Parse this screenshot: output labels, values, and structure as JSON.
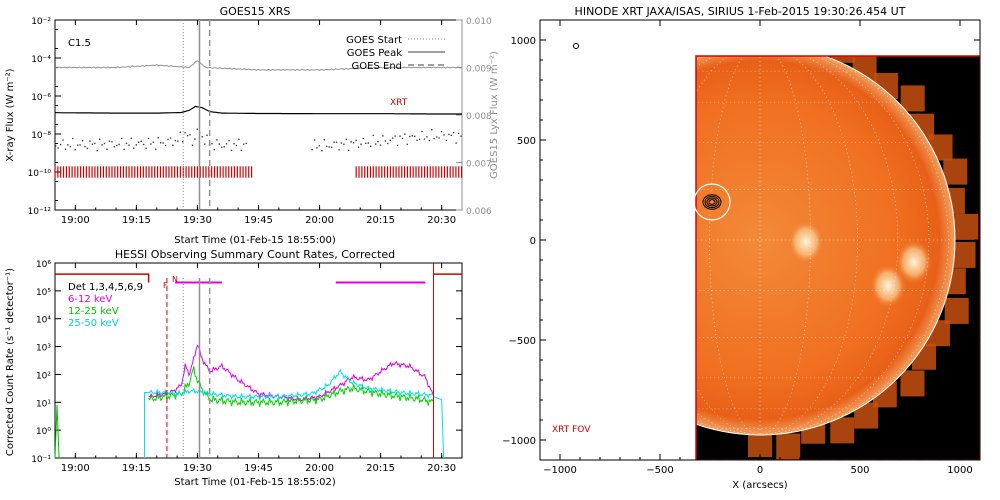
{
  "colors": {
    "goes_long": "#000000",
    "goes_short": "#404040",
    "lya": "#909090",
    "xrt_marks": "#d00000",
    "det_total": "#000000",
    "band_6_12": "#e000e0",
    "band_12_25": "#00d000",
    "band_25_50": "#00e0e0",
    "attenuator": "#d00000",
    "event_lines": "#909090",
    "sun_orange": "#f07020",
    "fov_border": "#e00000",
    "limb": "#ffffff"
  },
  "chart_data": [
    {
      "id": "goes",
      "type": "line",
      "title": "GOES15 XRS",
      "class_label": "C1.5",
      "xlabel": "Start Time (01-Feb-15 18:55:00)",
      "ylabel": "X-ray Flux (W m⁻²)",
      "y2label": "GOES15 Lyx Flux (W m⁻²)",
      "xlim": [
        -5,
        95
      ],
      "x_unit": "minutes after 19:00",
      "ylim_log10": [
        -12,
        -2
      ],
      "y2lim": [
        0.006,
        0.01
      ],
      "xticks": [
        {
          "v": 0,
          "label": "19:00"
        },
        {
          "v": 15,
          "label": "19:15"
        },
        {
          "v": 30,
          "label": "19:30"
        },
        {
          "v": 45,
          "label": "19:45"
        },
        {
          "v": 60,
          "label": "20:00"
        },
        {
          "v": 75,
          "label": "20:15"
        },
        {
          "v": 90,
          "label": "20:30"
        }
      ],
      "yticks": [
        {
          "e": -12,
          "label": "10⁻¹²"
        },
        {
          "e": -10,
          "label": "10⁻¹⁰"
        },
        {
          "e": -8,
          "label": "10⁻⁸"
        },
        {
          "e": -6,
          "label": "10⁻⁶"
        },
        {
          "e": -4,
          "label": "10⁻⁴"
        },
        {
          "e": -2,
          "label": "10⁻²"
        }
      ],
      "y2ticks": [
        "0.006",
        "0.007",
        "0.008",
        "0.009",
        "0.010"
      ],
      "legend": [
        {
          "label": "GOES Start",
          "style": "dotted"
        },
        {
          "label": "GOES Peak",
          "style": "solid"
        },
        {
          "label": "GOES End",
          "style": "dashed"
        }
      ],
      "xrt_label": "XRT",
      "event_times": {
        "start": 26.5,
        "peak": 30.5,
        "end": 33.0
      },
      "series": [
        {
          "name": "long",
          "x": [
            -5,
            10,
            20,
            26,
            28,
            29.5,
            31,
            33,
            36,
            45,
            60,
            75,
            90,
            95
          ],
          "log_flux": [
            -6.88,
            -6.9,
            -6.9,
            -6.87,
            -6.75,
            -6.55,
            -6.6,
            -6.82,
            -6.9,
            -6.92,
            -6.93,
            -6.93,
            -6.95,
            -6.95
          ]
        },
        {
          "name": "short",
          "x": [
            -5,
            10,
            20,
            25,
            27,
            28.5,
            30,
            31,
            33,
            36,
            45,
            60,
            75,
            80,
            90,
            95
          ],
          "log_flux": [
            -8.55,
            -8.5,
            -8.45,
            -8.3,
            -7.9,
            -8.4,
            -7.8,
            -8.1,
            -8.5,
            -8.55,
            -8.5,
            -8.6,
            -8.35,
            -8.2,
            -8.05,
            -8.1
          ]
        },
        {
          "name": "lya",
          "x": [
            -5,
            10,
            20,
            28,
            30,
            32,
            45,
            60,
            75,
            90,
            95
          ],
          "flux": [
            0.009,
            0.009,
            0.00905,
            0.009,
            0.00915,
            0.009,
            0.00895,
            0.00895,
            0.009,
            0.009,
            0.009
          ]
        }
      ],
      "xrt_intervals": [
        [
          -5,
          44
        ],
        [
          69,
          95
        ]
      ]
    },
    {
      "id": "hessi",
      "type": "line",
      "title": "HESSI Observing Summary Count Rates, Corrected",
      "xlabel": "Start Time (01-Feb-15 18:55:02)",
      "ylabel": "Corrected Count Rate (s⁻¹ detector⁻¹)",
      "xlim": [
        -5,
        95
      ],
      "ylim_log10": [
        -1,
        6
      ],
      "xticks": [
        {
          "v": 0,
          "label": "19:00"
        },
        {
          "v": 15,
          "label": "19:15"
        },
        {
          "v": 30,
          "label": "19:30"
        },
        {
          "v": 45,
          "label": "19:45"
        },
        {
          "v": 60,
          "label": "20:00"
        },
        {
          "v": 75,
          "label": "20:15"
        },
        {
          "v": 90,
          "label": "20:30"
        }
      ],
      "yticks": [
        {
          "e": -1,
          "label": "10⁻¹"
        },
        {
          "e": 0,
          "label": "10⁰"
        },
        {
          "e": 1,
          "label": "10¹"
        },
        {
          "e": 2,
          "label": "10²"
        },
        {
          "e": 3,
          "label": "10³"
        },
        {
          "e": 4,
          "label": "10⁴"
        },
        {
          "e": 5,
          "label": "10⁵"
        },
        {
          "e": 6,
          "label": "10⁶"
        }
      ],
      "legend": [
        {
          "label": "Det 1,3,4,5,6,9",
          "color_key": "det_total"
        },
        {
          "label": "6-12 keV",
          "color_key": "band_6_12"
        },
        {
          "label": "12-25 keV",
          "color_key": "band_12_25"
        },
        {
          "label": "25-50 keV",
          "color_key": "band_25_50"
        }
      ],
      "markers": {
        "night": "N",
        "flare": "F"
      },
      "attenuator_times": [
        22.5,
        88.0
      ],
      "event_times": {
        "start": 26.5,
        "peak": 30.5,
        "end": 33.0
      },
      "series": [
        {
          "name": "6-12 keV",
          "x": [
            18,
            22,
            24,
            26,
            27,
            28,
            29,
            30,
            31,
            33,
            36,
            40,
            45,
            55,
            60,
            65,
            68,
            72,
            78,
            82,
            86,
            88
          ],
          "log_rate": [
            1.2,
            1.3,
            1.4,
            1.6,
            2.3,
            2.0,
            2.5,
            3.1,
            2.6,
            2.1,
            2.3,
            1.8,
            1.3,
            1.1,
            1.2,
            1.6,
            1.9,
            1.8,
            2.4,
            2.3,
            1.9,
            1.2
          ]
        },
        {
          "name": "12-25 keV",
          "x": [
            18,
            22,
            26,
            28,
            29,
            30,
            31,
            33,
            40,
            50,
            60,
            65,
            68,
            75,
            85,
            88
          ],
          "log_rate": [
            1.1,
            1.2,
            1.3,
            1.7,
            2.2,
            1.8,
            1.5,
            1.1,
            1.0,
            1.0,
            1.1,
            1.4,
            1.5,
            1.3,
            1.1,
            1.0
          ]
        },
        {
          "name": "25-50 keV",
          "x": [
            18,
            22,
            26,
            28,
            30,
            33,
            40,
            50,
            58,
            62,
            65,
            68,
            72,
            80,
            88
          ],
          "log_rate": [
            1.35,
            1.35,
            1.3,
            1.4,
            1.4,
            1.3,
            1.2,
            1.2,
            1.3,
            1.6,
            2.1,
            1.7,
            1.5,
            1.35,
            1.25
          ]
        }
      ],
      "det_total": {
        "x": [
          -5,
          18,
          22.5,
          88,
          95
        ],
        "log_rate": [
          5.6,
          5.6,
          5.6,
          5.6,
          5.6
        ]
      },
      "magenta_bars": [
        [
          24.5,
          36.0
        ],
        [
          64.0,
          86.0
        ]
      ]
    },
    {
      "id": "xrt",
      "type": "heatmap",
      "title": "HINODE XRT JAXA/ISAS, SIRIUS   1-Feb-2015 19:30:26.454 UT",
      "xlabel": "X (arcsecs)",
      "xlim": [
        -1100,
        1100
      ],
      "ylim": [
        -1100,
        1100
      ],
      "xticks": [
        -1000,
        -500,
        0,
        500,
        1000
      ],
      "yticks": [
        -1000,
        -500,
        0,
        500,
        1000
      ],
      "fov_label": "XRT FOV",
      "fov": {
        "x0": -320,
        "x1": 1100,
        "y0": -1100,
        "y1": 920
      },
      "solar_radius": 975,
      "flare_location": {
        "x": -240,
        "y": 190
      },
      "active_regions": [
        {
          "x": 770,
          "y": -110
        },
        {
          "x": 640,
          "y": -230
        },
        {
          "x": 230,
          "y": -10
        }
      ]
    }
  ]
}
